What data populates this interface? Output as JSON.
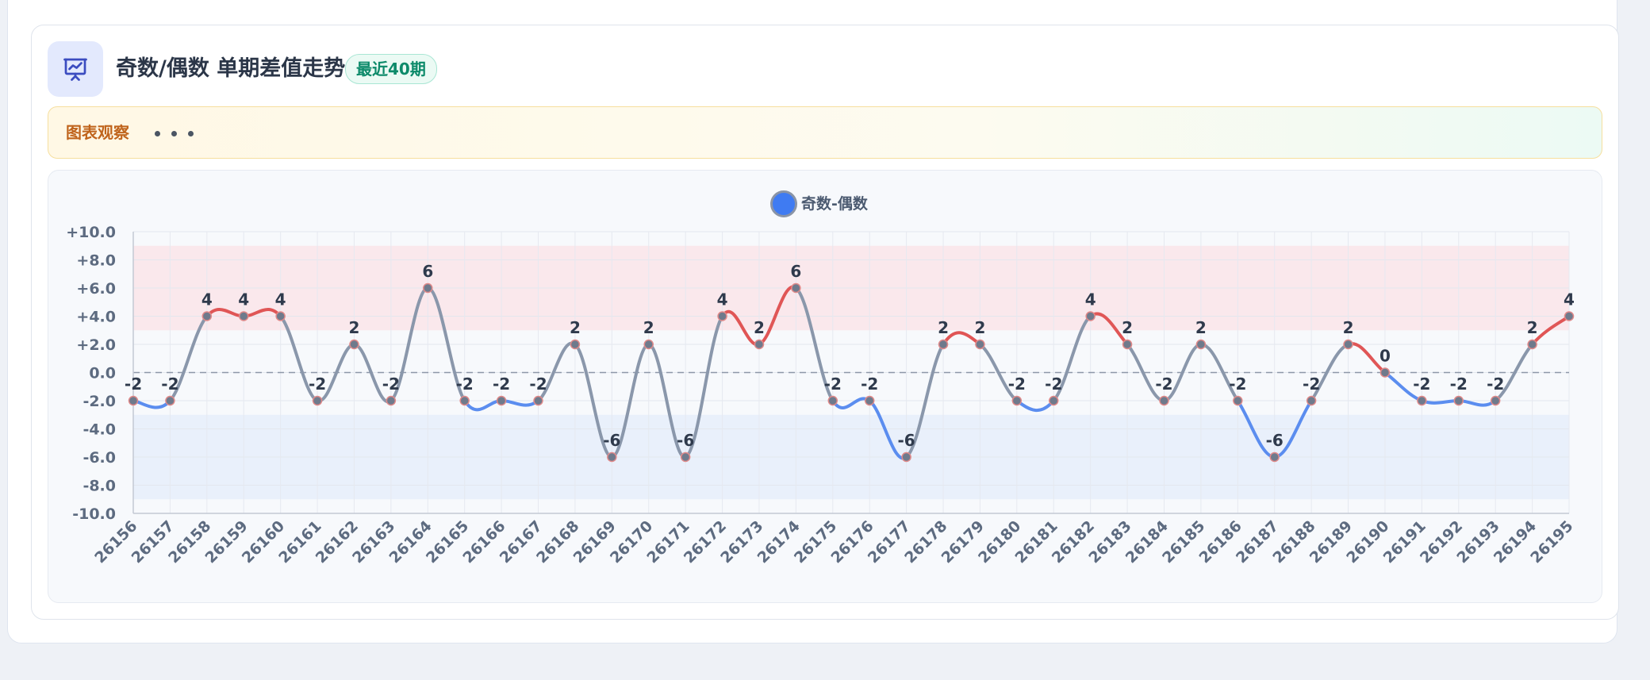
{
  "header": {
    "title": "奇数/偶数 单期差值走势",
    "badge": "最近40期"
  },
  "observation": {
    "label": "图表观察"
  },
  "colors": {
    "line": "#8a97ab",
    "positive": "#e05656",
    "negative": "#5b8def",
    "accent": "#3f7bf2",
    "upper_band": "#f9e6ea",
    "lower_band": "#e7eefb"
  },
  "icons": {
    "header": "presentation-chart-icon"
  },
  "chart_data": {
    "type": "line",
    "categories": [
      "26156",
      "26157",
      "26158",
      "26159",
      "26160",
      "26161",
      "26162",
      "26163",
      "26164",
      "26165",
      "26166",
      "26167",
      "26168",
      "26169",
      "26170",
      "26171",
      "26172",
      "26173",
      "26174",
      "26175",
      "26176",
      "26177",
      "26178",
      "26179",
      "26180",
      "26181",
      "26182",
      "26183",
      "26184",
      "26185",
      "26186",
      "26187",
      "26188",
      "26189",
      "26190",
      "26191",
      "26192",
      "26193",
      "26194",
      "26195"
    ],
    "series": [
      {
        "name": "奇数-偶数",
        "values": [
          -2,
          -2,
          4,
          4,
          4,
          -2,
          2,
          -2,
          6,
          -2,
          -2,
          -2,
          2,
          -6,
          2,
          -6,
          4,
          2,
          6,
          -2,
          -2,
          -6,
          2,
          2,
          -2,
          -2,
          4,
          2,
          -2,
          2,
          -2,
          -6,
          -2,
          2,
          0,
          -2,
          -2,
          -2,
          2,
          4
        ]
      }
    ],
    "ylim": [
      -10,
      10
    ],
    "yticks": [
      "+10.0",
      "+8.0",
      "+6.0",
      "+4.0",
      "+2.0",
      "0.0",
      "-2.0",
      "-4.0",
      "-6.0",
      "-8.0",
      "-10.0"
    ],
    "bands": [
      {
        "from": 3,
        "to": 9,
        "tone": "high"
      },
      {
        "from": -9,
        "to": -3,
        "tone": "low"
      }
    ],
    "reference_line": 0,
    "grid": true,
    "legend": "top-center",
    "data_labels": true
  }
}
